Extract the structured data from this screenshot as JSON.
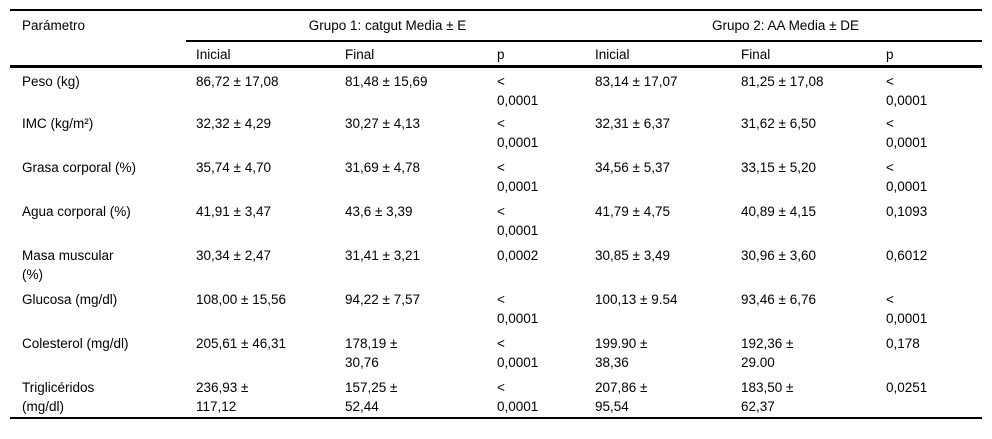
{
  "table": {
    "header": {
      "param_label": "Parámetro",
      "group1_label": "Grupo 1: catgut Media ± E",
      "group2_label": "Grupo 2: AA Media ± DE",
      "subheaders": [
        "Inicial",
        "Final",
        "p",
        "Inicial",
        "Final",
        "p"
      ]
    },
    "rows": [
      {
        "param": "Peso (kg)",
        "cells": [
          "86,72 ± 17,08",
          "81,48 ± 15,69",
          "<\n0,0001",
          "83,14 ± 17,07",
          "81,25 ± 17,08",
          "<\n0,0001"
        ]
      },
      {
        "param": "IMC (kg/m²)",
        "cells": [
          "32,32 ± 4,29",
          "30,27 ± 4,13",
          "<\n0,0001",
          "32,31 ± 6,37",
          "31,62 ± 6,50",
          "<\n0,0001"
        ]
      },
      {
        "param": "Grasa corporal (%)",
        "cells": [
          "35,74 ± 4,70",
          "31,69 ± 4,78",
          "<\n0,0001",
          "34,56 ± 5,37",
          "33,15 ± 5,20",
          "<\n0,0001"
        ]
      },
      {
        "param": "Agua corporal (%)",
        "cells": [
          "41,91 ± 3,47",
          "43,6 ± 3,39",
          "<\n0,0001",
          "41,79 ± 4,75",
          "40,89 ± 4,15",
          "0,1093"
        ]
      },
      {
        "param": "Masa muscular\n(%)",
        "cells": [
          "30,34 ± 2,47",
          "31,41 ± 3,21",
          "0,0002",
          "30,85 ± 3,49",
          "30,96 ± 3,60",
          "0,6012"
        ]
      },
      {
        "param": "Glucosa (mg/dl)",
        "cells": [
          "108,00 ± 15,56",
          "94,22 ± 7,57",
          "<\n0,0001",
          "100,13 ± 9.54",
          "93,46 ± 6,76",
          "<\n0,0001"
        ]
      },
      {
        "param": "Colesterol (mg/dl)",
        "cells": [
          "205,61 ± 46,31",
          "178,19 ±\n30,76",
          "<\n0,0001",
          "199.90 ±\n38,36",
          "192,36 ±\n29.00",
          "0,178"
        ]
      },
      {
        "param": "Triglicéridos\n(mg/dl)",
        "cells": [
          "236,93 ±\n117,12",
          "157,25 ±\n52,44",
          "<\n0,0001",
          "207,86 ±\n95,54",
          "183,50 ±\n62,37",
          "0,0251"
        ]
      }
    ]
  }
}
